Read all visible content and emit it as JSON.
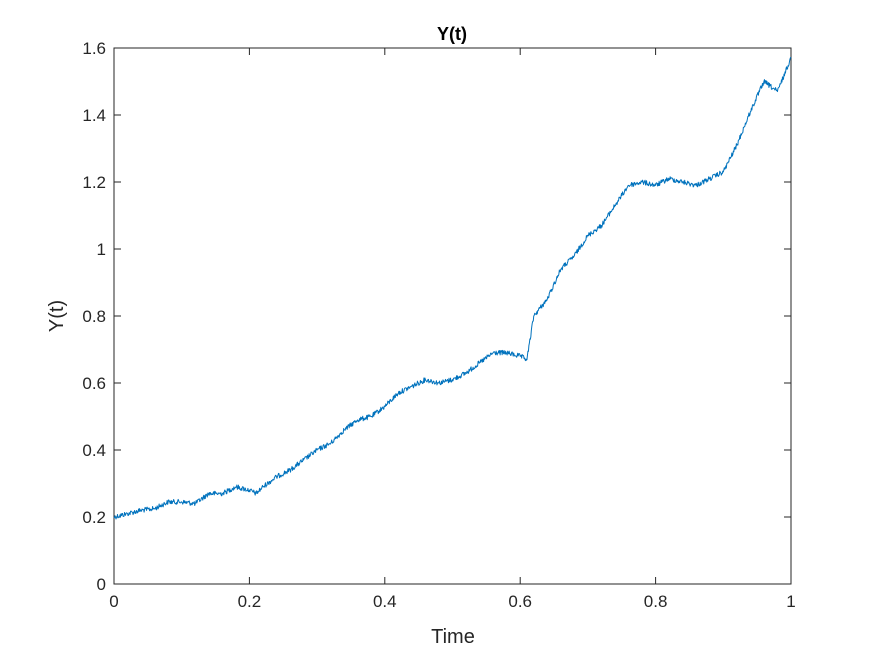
{
  "chart_data": {
    "type": "line",
    "title": "Y(t)",
    "xlabel": "Time",
    "ylabel": "Y(t)",
    "xlim": [
      0,
      1
    ],
    "ylim": [
      0,
      1.6
    ],
    "xticks": [
      0,
      0.2,
      0.4,
      0.6,
      0.8,
      1
    ],
    "xtick_labels": [
      "0",
      "0.2",
      "0.4",
      "0.6",
      "0.8",
      "1"
    ],
    "yticks": [
      0,
      0.2,
      0.4,
      0.6,
      0.8,
      1,
      1.2,
      1.4,
      1.6
    ],
    "ytick_labels": [
      "0",
      "0.2",
      "0.4",
      "0.6",
      "0.8",
      "1",
      "1.2",
      "1.4",
      "1.6"
    ],
    "grid": false,
    "legend": "none",
    "series": [
      {
        "color": "#0072BD",
        "x": [
          0,
          0.02,
          0.04,
          0.06,
          0.08,
          0.1,
          0.12,
          0.14,
          0.16,
          0.18,
          0.2,
          0.21,
          0.22,
          0.24,
          0.26,
          0.28,
          0.3,
          0.32,
          0.34,
          0.36,
          0.38,
          0.4,
          0.42,
          0.44,
          0.46,
          0.48,
          0.5,
          0.52,
          0.54,
          0.56,
          0.58,
          0.6,
          0.61,
          0.62,
          0.64,
          0.66,
          0.68,
          0.7,
          0.72,
          0.74,
          0.76,
          0.78,
          0.8,
          0.82,
          0.84,
          0.86,
          0.88,
          0.9,
          0.92,
          0.94,
          0.96,
          0.98,
          1.0
        ],
        "y": [
          0.2,
          0.21,
          0.22,
          0.225,
          0.245,
          0.245,
          0.24,
          0.27,
          0.27,
          0.29,
          0.28,
          0.27,
          0.29,
          0.32,
          0.34,
          0.37,
          0.4,
          0.42,
          0.46,
          0.49,
          0.5,
          0.53,
          0.57,
          0.59,
          0.61,
          0.6,
          0.61,
          0.63,
          0.66,
          0.69,
          0.69,
          0.68,
          0.67,
          0.8,
          0.85,
          0.94,
          0.98,
          1.04,
          1.07,
          1.13,
          1.19,
          1.2,
          1.19,
          1.21,
          1.2,
          1.19,
          1.21,
          1.23,
          1.31,
          1.41,
          1.5,
          1.47,
          1.57
        ]
      }
    ]
  }
}
